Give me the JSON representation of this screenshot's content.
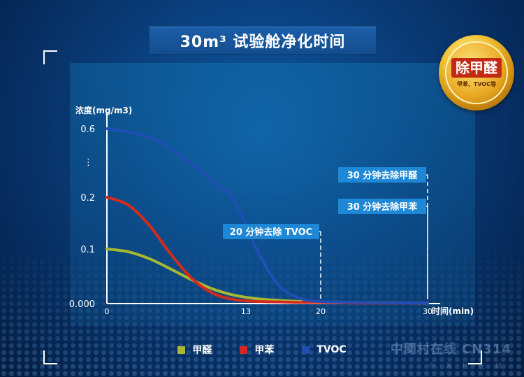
{
  "title": "30m³ 试验舱净化时间",
  "badge": {
    "main": "除甲醛",
    "sub": "甲苯、TVOC等"
  },
  "watermark": {
    "main": "中関村在线 CN314",
    "sub": "中 关 村 在 线"
  },
  "chart_data": {
    "type": "line",
    "title": "30m³ 试验舱净化时间",
    "ylabel": "浓度(mg/m3)",
    "xlabel": "时间(min)",
    "x_ticks": [
      0,
      13,
      20,
      30
    ],
    "y_ticks": [
      "0.000",
      "0.1",
      "0.2",
      "0.6"
    ],
    "y_break": "⋮",
    "xlim": [
      0,
      30
    ],
    "series": [
      {
        "name": "甲醛",
        "color": "#a8b832",
        "x": [
          0,
          2,
          4,
          6,
          8,
          10,
          12,
          14,
          16,
          18,
          20,
          24,
          30
        ],
        "y": [
          0.1,
          0.095,
          0.082,
          0.063,
          0.043,
          0.026,
          0.015,
          0.009,
          0.006,
          0.004,
          0.003,
          0.002,
          0.001
        ]
      },
      {
        "name": "甲苯",
        "color": "#d42a1e",
        "x": [
          0,
          2,
          4,
          6,
          8,
          10,
          12,
          14,
          16,
          18,
          20,
          24,
          30
        ],
        "y": [
          0.2,
          0.185,
          0.145,
          0.09,
          0.045,
          0.018,
          0.007,
          0.004,
          0.003,
          0.002,
          0.002,
          0.001,
          0.001
        ]
      },
      {
        "name": "TVOC",
        "color": "#1f4fb4",
        "x": [
          0,
          2,
          4,
          6,
          8,
          10,
          12,
          14,
          16,
          18,
          20,
          24,
          30
        ],
        "y": [
          0.6,
          0.58,
          0.55,
          0.48,
          0.39,
          0.29,
          0.19,
          0.1,
          0.035,
          0.01,
          0.004,
          0.002,
          0.001
        ]
      }
    ],
    "annotations": [
      {
        "text": "30 分钟去除甲醛",
        "x": 30
      },
      {
        "text": "30 分钟去除甲苯",
        "x": 30
      },
      {
        "text": "20 分钟去除 TVOC",
        "x": 20
      }
    ],
    "legend_position": "bottom-center"
  }
}
